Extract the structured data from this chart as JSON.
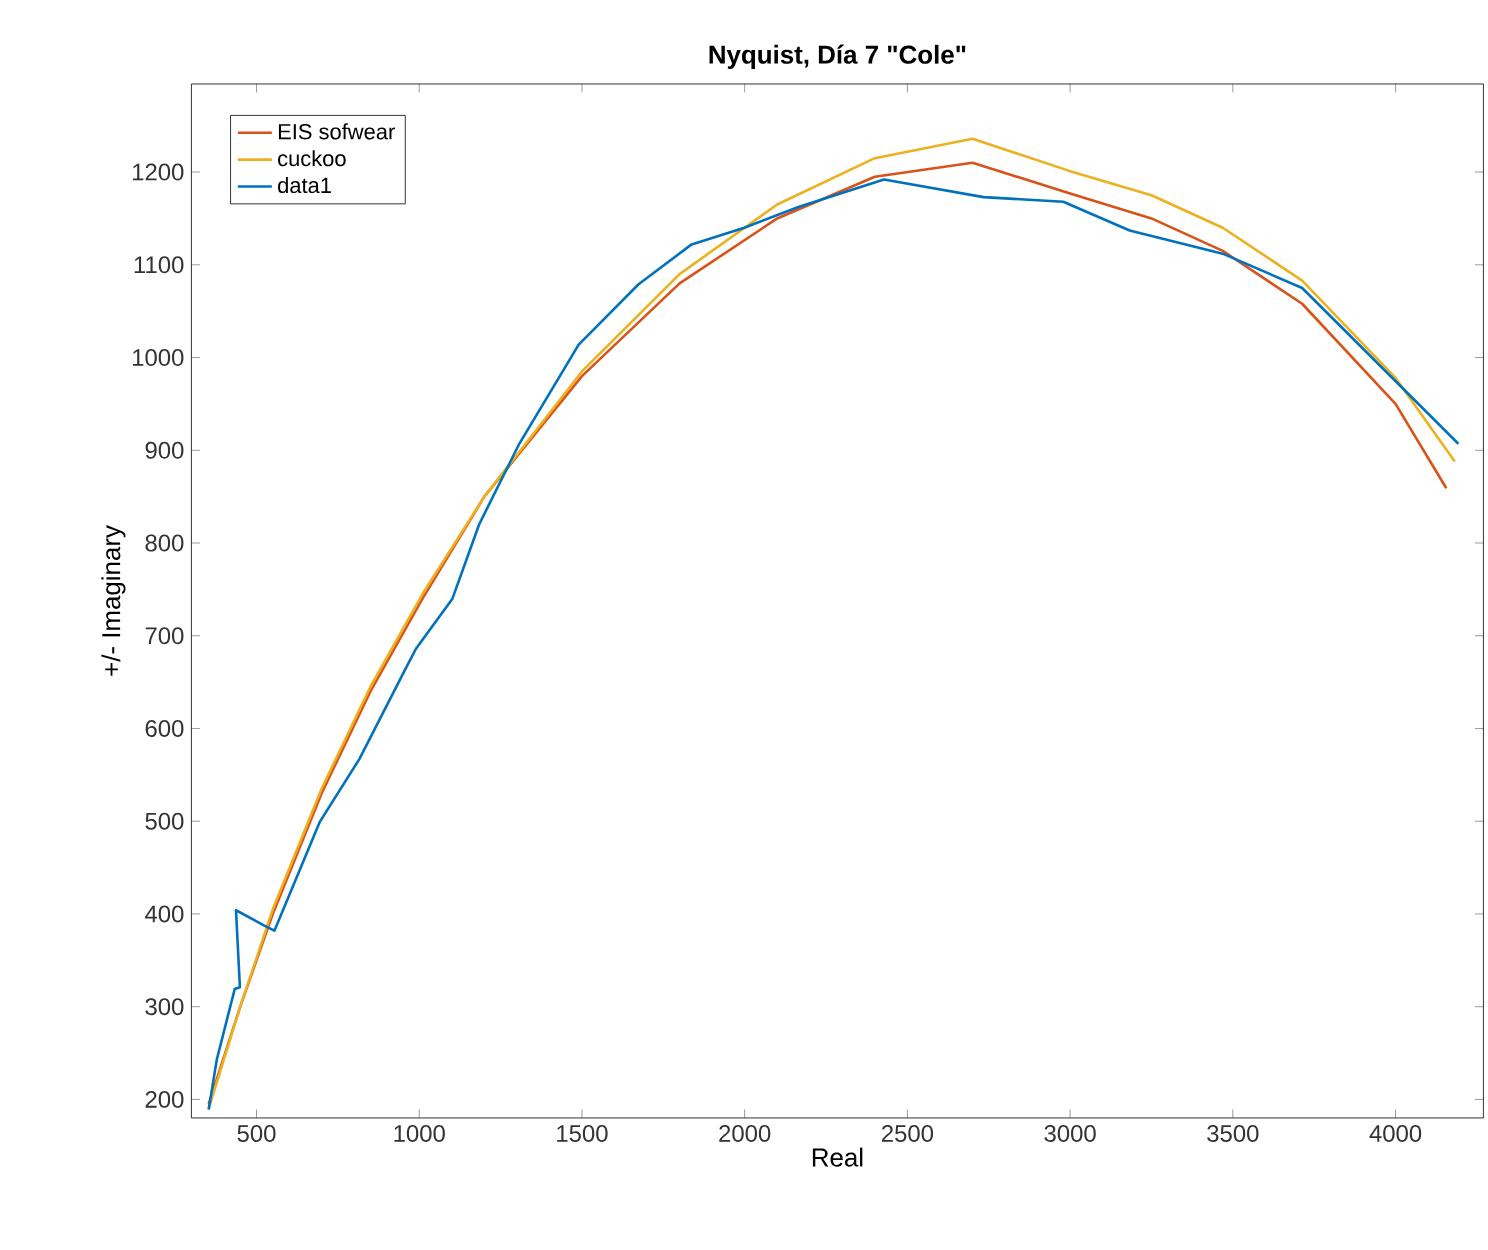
{
  "chart_data": {
    "type": "line",
    "title": "Nyquist, Día 7 \"Cole\"",
    "xlabel": "Real",
    "ylabel": "+/- Imaginary",
    "xlim": [
      300,
      4270
    ],
    "ylim": [
      180,
      1295
    ],
    "xticks": [
      500,
      1000,
      1500,
      2000,
      2500,
      3000,
      3500,
      4000
    ],
    "yticks": [
      200,
      300,
      400,
      500,
      600,
      700,
      800,
      900,
      1000,
      1100,
      1200
    ],
    "legend": "top left",
    "grid": false,
    "series": [
      {
        "name": "EIS sofwear",
        "color": "#d95319",
        "x": [
          353,
          450,
          550,
          700,
          850,
          1010,
          1200,
          1500,
          1800,
          2100,
          2400,
          2700,
          3000,
          3250,
          3469,
          3713,
          4000,
          4156
        ],
        "values": [
          195,
          300,
          400,
          530,
          640,
          740,
          850,
          980,
          1080,
          1150,
          1195,
          1210,
          1177,
          1150,
          1115,
          1058,
          950,
          859
        ]
      },
      {
        "name": "cuckoo",
        "color": "#edb120",
        "x": [
          353,
          450,
          550,
          700,
          850,
          1010,
          1200,
          1500,
          1800,
          2100,
          2400,
          2700,
          3000,
          3250,
          3469,
          3713,
          4000,
          4182
        ],
        "values": [
          190,
          300,
          405,
          535,
          645,
          745,
          850,
          985,
          1090,
          1165,
          1215,
          1236,
          1201,
          1175,
          1140,
          1083,
          978,
          888
        ]
      },
      {
        "name": "data1",
        "color": "#0072bd",
        "x": [
          353,
          378,
          433,
          449,
          437,
          521,
          555,
          694,
          816,
          959,
          990,
          1102,
          1184,
          1306,
          1490,
          1674,
          1837,
          1999,
          2163,
          2428,
          2734,
          2979,
          3183,
          3469,
          3713,
          4193
        ],
        "values": [
          189,
          243,
          319,
          321,
          404,
          388,
          382,
          499,
          567,
          665,
          686,
          740,
          820,
          906,
          1014,
          1079,
          1122,
          1140,
          1162,
          1192,
          1173,
          1168,
          1137,
          1112,
          1075,
          907
        ]
      }
    ]
  }
}
